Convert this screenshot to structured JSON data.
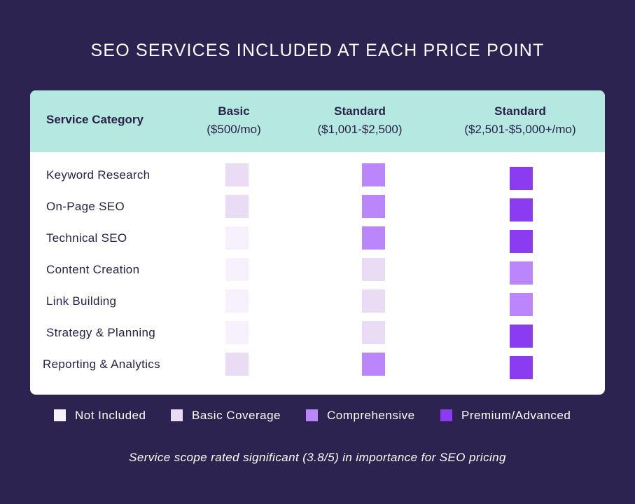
{
  "title": "SEO SERVICES INCLUDED AT EACH PRICE POINT",
  "header": {
    "category_label": "Service Category",
    "columns": [
      {
        "name": "Basic",
        "price": "($500/mo)"
      },
      {
        "name": "Standard",
        "price": "($1,001-$2,500)"
      },
      {
        "name": "Standard",
        "price": "($2,501-$5,000+/mo)"
      }
    ]
  },
  "legend": [
    {
      "label": "Not Included",
      "color": "#f6f1fc"
    },
    {
      "label": "Basic Coverage",
      "color": "#eadcf5"
    },
    {
      "label": "Comprehensive",
      "color": "#bb86fc"
    },
    {
      "label": "Premium/Advanced",
      "color": "#8c3cf0"
    }
  ],
  "footnote": "Service scope rated significant (3.8/5) in importance for SEO pricing",
  "chart_data": {
    "type": "heatmap",
    "title": "SEO SERVICES INCLUDED AT EACH PRICE POINT",
    "row_header": "Service Category",
    "columns": [
      "Basic ($500/mo)",
      "Standard ($1,001-$2,500)",
      "Standard ($2,501-$5,000+/mo)"
    ],
    "rows": [
      "Keyword Research",
      "On-Page SEO",
      "Technical SEO",
      "Content Creation",
      "Link Building",
      "Strategy & Planning",
      "Reporting & Analytics"
    ],
    "levels": [
      "Not Included",
      "Basic Coverage",
      "Comprehensive",
      "Premium/Advanced"
    ],
    "values": [
      [
        1,
        2,
        3
      ],
      [
        1,
        2,
        3
      ],
      [
        0,
        2,
        3
      ],
      [
        0,
        1,
        2
      ],
      [
        0,
        1,
        2
      ],
      [
        0,
        1,
        3
      ],
      [
        1,
        2,
        3
      ]
    ]
  }
}
